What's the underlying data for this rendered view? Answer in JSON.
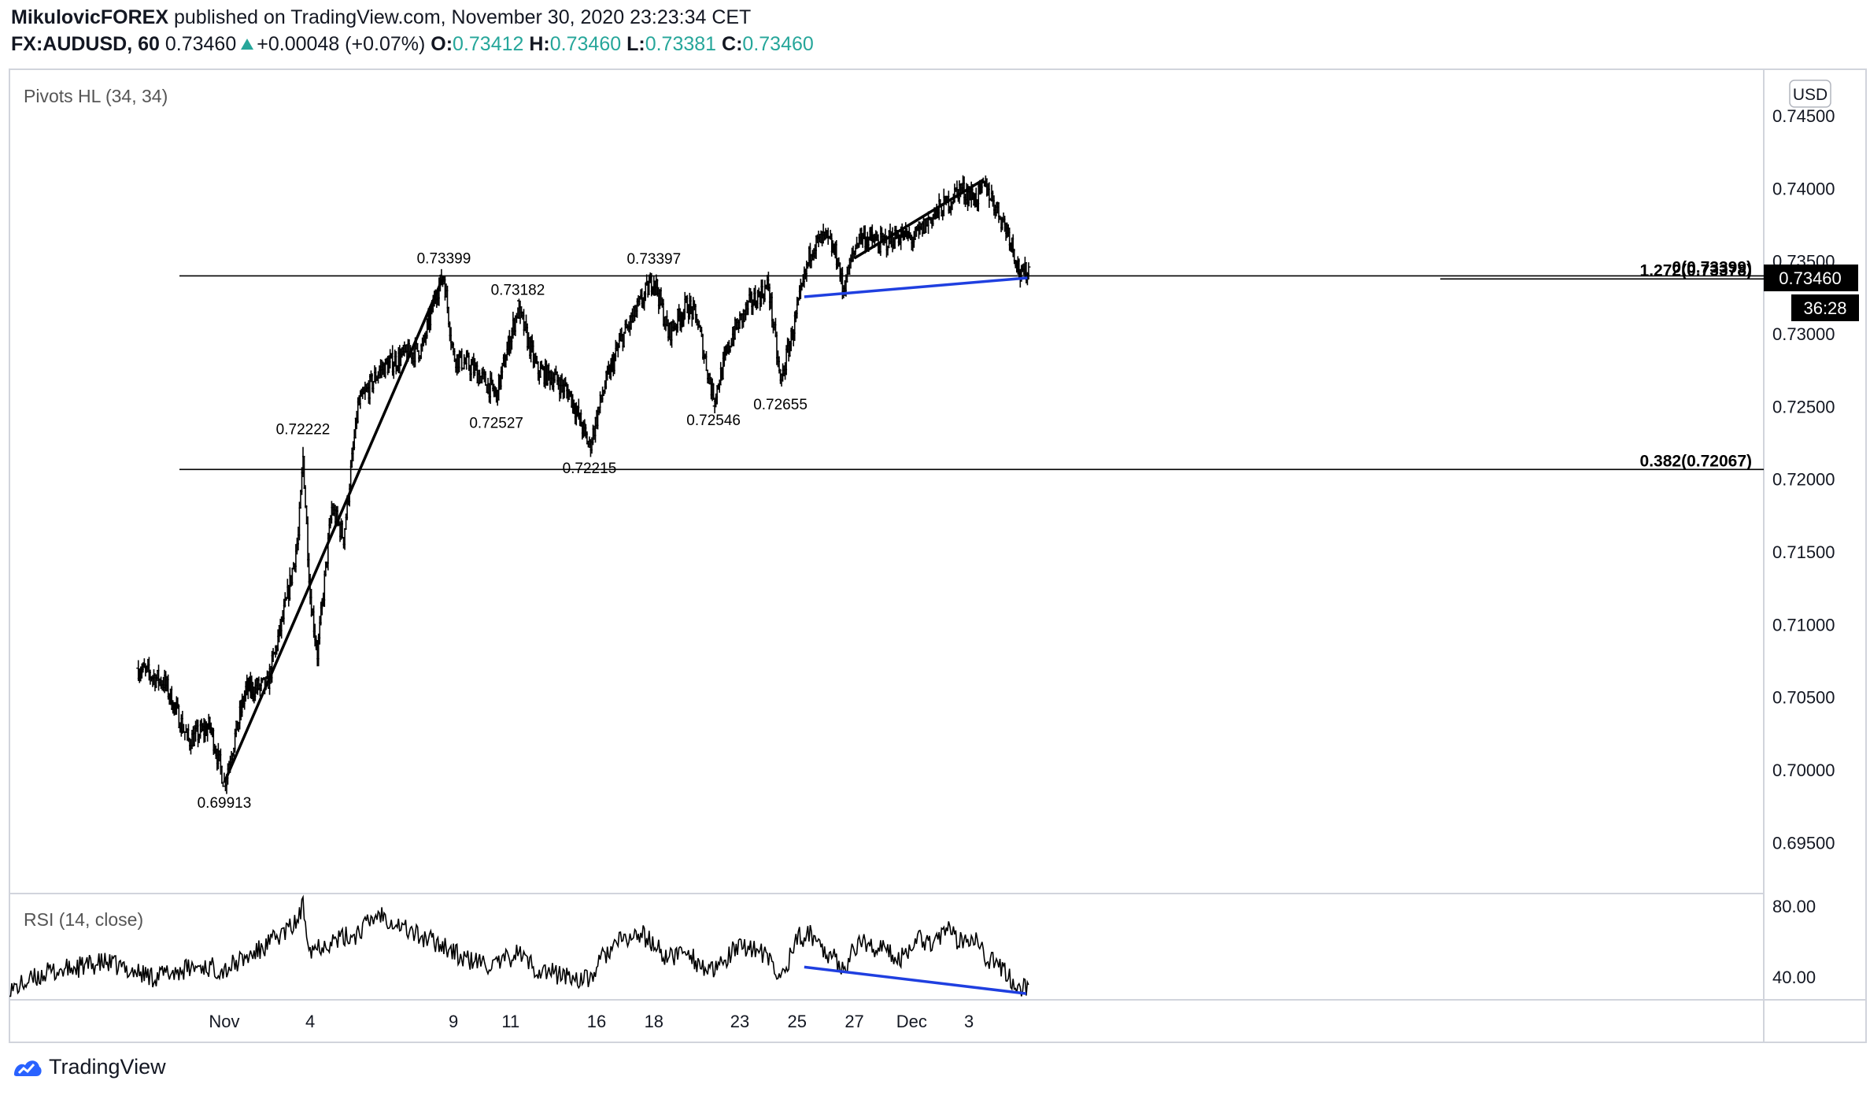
{
  "header": {
    "author": "MikulovicFOREX",
    "published": "published on TradingView.com, November 30, 2020 23:23:34 CET",
    "symbol": "FX:AUDUSD, 60",
    "last": "0.73460",
    "change": "+0.00048 (+0.07%)",
    "o_label": "O:",
    "o_value": "0.73412",
    "h_label": "H:",
    "h_value": "0.73460",
    "l_label": "L:",
    "l_value": "0.73381",
    "c_label": "C:",
    "c_value": "0.73460"
  },
  "footer": {
    "brand": "TradingView"
  },
  "colors": {
    "up": "#26a69a",
    "blue": "#1f3fe0",
    "black": "#000000",
    "grid_border": "#d1d4dc",
    "axis_text": "#131722"
  },
  "chart_data": [
    {
      "type": "candlestick",
      "indicator_label": "Pivots HL (34, 34)",
      "currency_label": "USD",
      "price_tag": "0.73460",
      "countdown_tag": "36:28",
      "ylim": [
        0.6915,
        0.7482
      ],
      "y_ticks": [
        0.745,
        0.74,
        0.735,
        0.73,
        0.725,
        0.72,
        0.715,
        0.71,
        0.705,
        0.7,
        0.695
      ],
      "y_tick_labels": [
        "0.74500",
        "0.74000",
        "0.73500",
        "0.73000",
        "0.72500",
        "0.72000",
        "0.71500",
        "0.71000",
        "0.70500",
        "0.70000",
        "0.69500"
      ],
      "x_index_range": [
        -180,
        1290
      ],
      "x_ticks": [
        {
          "i": 0,
          "label": "Nov"
        },
        {
          "i": 72,
          "label": "4"
        },
        {
          "i": 192,
          "label": "9"
        },
        {
          "i": 240,
          "label": "11"
        },
        {
          "i": 312,
          "label": "16"
        },
        {
          "i": 360,
          "label": "18"
        },
        {
          "i": 432,
          "label": "23"
        },
        {
          "i": 480,
          "label": "25"
        },
        {
          "i": 528,
          "label": "27"
        },
        {
          "i": 576,
          "label": "Dec"
        },
        {
          "i": 624,
          "label": "3"
        }
      ],
      "anchors": [
        [
          -72,
          0.707
        ],
        [
          -50,
          0.706
        ],
        [
          -30,
          0.702
        ],
        [
          -12,
          0.703
        ],
        [
          0,
          0.6991
        ],
        [
          18,
          0.7055
        ],
        [
          36,
          0.7058
        ],
        [
          52,
          0.7115
        ],
        [
          62,
          0.716
        ],
        [
          66,
          0.7215
        ],
        [
          72,
          0.712
        ],
        [
          78,
          0.708
        ],
        [
          90,
          0.718
        ],
        [
          100,
          0.716
        ],
        [
          112,
          0.725
        ],
        [
          130,
          0.7275
        ],
        [
          150,
          0.7285
        ],
        [
          166,
          0.729
        ],
        [
          178,
          0.733
        ],
        [
          184,
          0.7339
        ],
        [
          192,
          0.7285
        ],
        [
          210,
          0.7275
        ],
        [
          228,
          0.7258
        ],
        [
          242,
          0.7305
        ],
        [
          246,
          0.7318
        ],
        [
          262,
          0.7275
        ],
        [
          276,
          0.727
        ],
        [
          290,
          0.7258
        ],
        [
          306,
          0.7222
        ],
        [
          318,
          0.7262
        ],
        [
          332,
          0.7295
        ],
        [
          350,
          0.7323
        ],
        [
          360,
          0.7339
        ],
        [
          372,
          0.73
        ],
        [
          388,
          0.732
        ],
        [
          396,
          0.731
        ],
        [
          410,
          0.7255
        ],
        [
          426,
          0.73
        ],
        [
          440,
          0.732
        ],
        [
          456,
          0.7333
        ],
        [
          466,
          0.7266
        ],
        [
          480,
          0.7315
        ],
        [
          492,
          0.736
        ],
        [
          504,
          0.7366
        ],
        [
          514,
          0.7352
        ],
        [
          518,
          0.733
        ],
        [
          532,
          0.7368
        ],
        [
          550,
          0.7362
        ],
        [
          566,
          0.7368
        ],
        [
          578,
          0.7365
        ],
        [
          592,
          0.738
        ],
        [
          606,
          0.739
        ],
        [
          616,
          0.74
        ],
        [
          630,
          0.7393
        ],
        [
          638,
          0.7402
        ],
        [
          648,
          0.7385
        ],
        [
          658,
          0.7368
        ],
        [
          668,
          0.7338
        ],
        [
          674,
          0.7346
        ]
      ],
      "series": [
        {
          "name": "FX:AUDUSD",
          "timeframe": "60"
        }
      ],
      "horizontal_levels": [
        {
          "price": 0.73399,
          "label": "0(0.73399)",
          "from": 29
        },
        {
          "price": 0.73378,
          "label": "1.272(0.73378)",
          "from": 1135
        },
        {
          "price": 0.72067,
          "label": "0.382(0.72067)",
          "from": 29
        }
      ],
      "pivot_labels": [
        {
          "i": 0,
          "price": 0.69913,
          "text": "0.69913",
          "pos": "below"
        },
        {
          "i": 66,
          "price": 0.72222,
          "text": "0.72222",
          "pos": "above"
        },
        {
          "i": 184,
          "price": 0.73399,
          "text": "0.73399",
          "pos": "above"
        },
        {
          "i": 228,
          "price": 0.72527,
          "text": "0.72527",
          "pos": "below"
        },
        {
          "i": 246,
          "price": 0.73182,
          "text": "0.73182",
          "pos": "above"
        },
        {
          "i": 306,
          "price": 0.72215,
          "text": "0.72215",
          "pos": "below"
        },
        {
          "i": 360,
          "price": 0.73397,
          "text": "0.73397",
          "pos": "above"
        },
        {
          "i": 410,
          "price": 0.72546,
          "text": "0.72546",
          "pos": "below"
        },
        {
          "i": 466,
          "price": 0.72655,
          "text": "0.72655",
          "pos": "below"
        }
      ],
      "trend_lines": [
        {
          "from": [
            0,
            0.69913
          ],
          "to": [
            184,
            0.73399
          ],
          "color": "black"
        },
        {
          "from": [
            528,
            0.7352
          ],
          "to": [
            636,
            0.7406
          ],
          "color": "black"
        },
        {
          "from": [
            486,
            0.73255
          ],
          "to": [
            673,
            0.73385
          ],
          "color": "blue"
        }
      ]
    },
    {
      "type": "line",
      "indicator_label": "RSI (14, close)",
      "ylim": [
        27,
        87
      ],
      "y_ticks": [
        80,
        40
      ],
      "y_tick_labels": [
        "80.00",
        "40.00"
      ],
      "trend_line": {
        "from": [
          486,
          45.5
        ],
        "to": [
          672,
          30.5
        ],
        "color": "blue"
      },
      "values_note": "oscillates 30-80, peaks near Nov 4 and Nov 9",
      "anchors": [
        [
          -180,
          32
        ],
        [
          -150,
          42
        ],
        [
          -100,
          48
        ],
        [
          -60,
          40
        ],
        [
          -20,
          46
        ],
        [
          0,
          44
        ],
        [
          30,
          55
        ],
        [
          60,
          70
        ],
        [
          66,
          80
        ],
        [
          72,
          56
        ],
        [
          90,
          60
        ],
        [
          110,
          64
        ],
        [
          130,
          76
        ],
        [
          150,
          68
        ],
        [
          166,
          62
        ],
        [
          184,
          58
        ],
        [
          200,
          50
        ],
        [
          228,
          46
        ],
        [
          246,
          54
        ],
        [
          262,
          44
        ],
        [
          290,
          40
        ],
        [
          306,
          38
        ],
        [
          318,
          52
        ],
        [
          332,
          60
        ],
        [
          350,
          64
        ],
        [
          360,
          58
        ],
        [
          372,
          50
        ],
        [
          388,
          56
        ],
        [
          396,
          48
        ],
        [
          410,
          42
        ],
        [
          426,
          54
        ],
        [
          440,
          58
        ],
        [
          456,
          50
        ],
        [
          466,
          38
        ],
        [
          480,
          62
        ],
        [
          492,
          64
        ],
        [
          504,
          55
        ],
        [
          514,
          48
        ],
        [
          520,
          46
        ],
        [
          532,
          60
        ],
        [
          550,
          56
        ],
        [
          566,
          50
        ],
        [
          580,
          62
        ],
        [
          592,
          60
        ],
        [
          606,
          66
        ],
        [
          616,
          60
        ],
        [
          630,
          64
        ],
        [
          638,
          52
        ],
        [
          648,
          46
        ],
        [
          658,
          40
        ],
        [
          668,
          32
        ],
        [
          674,
          36
        ]
      ]
    }
  ]
}
